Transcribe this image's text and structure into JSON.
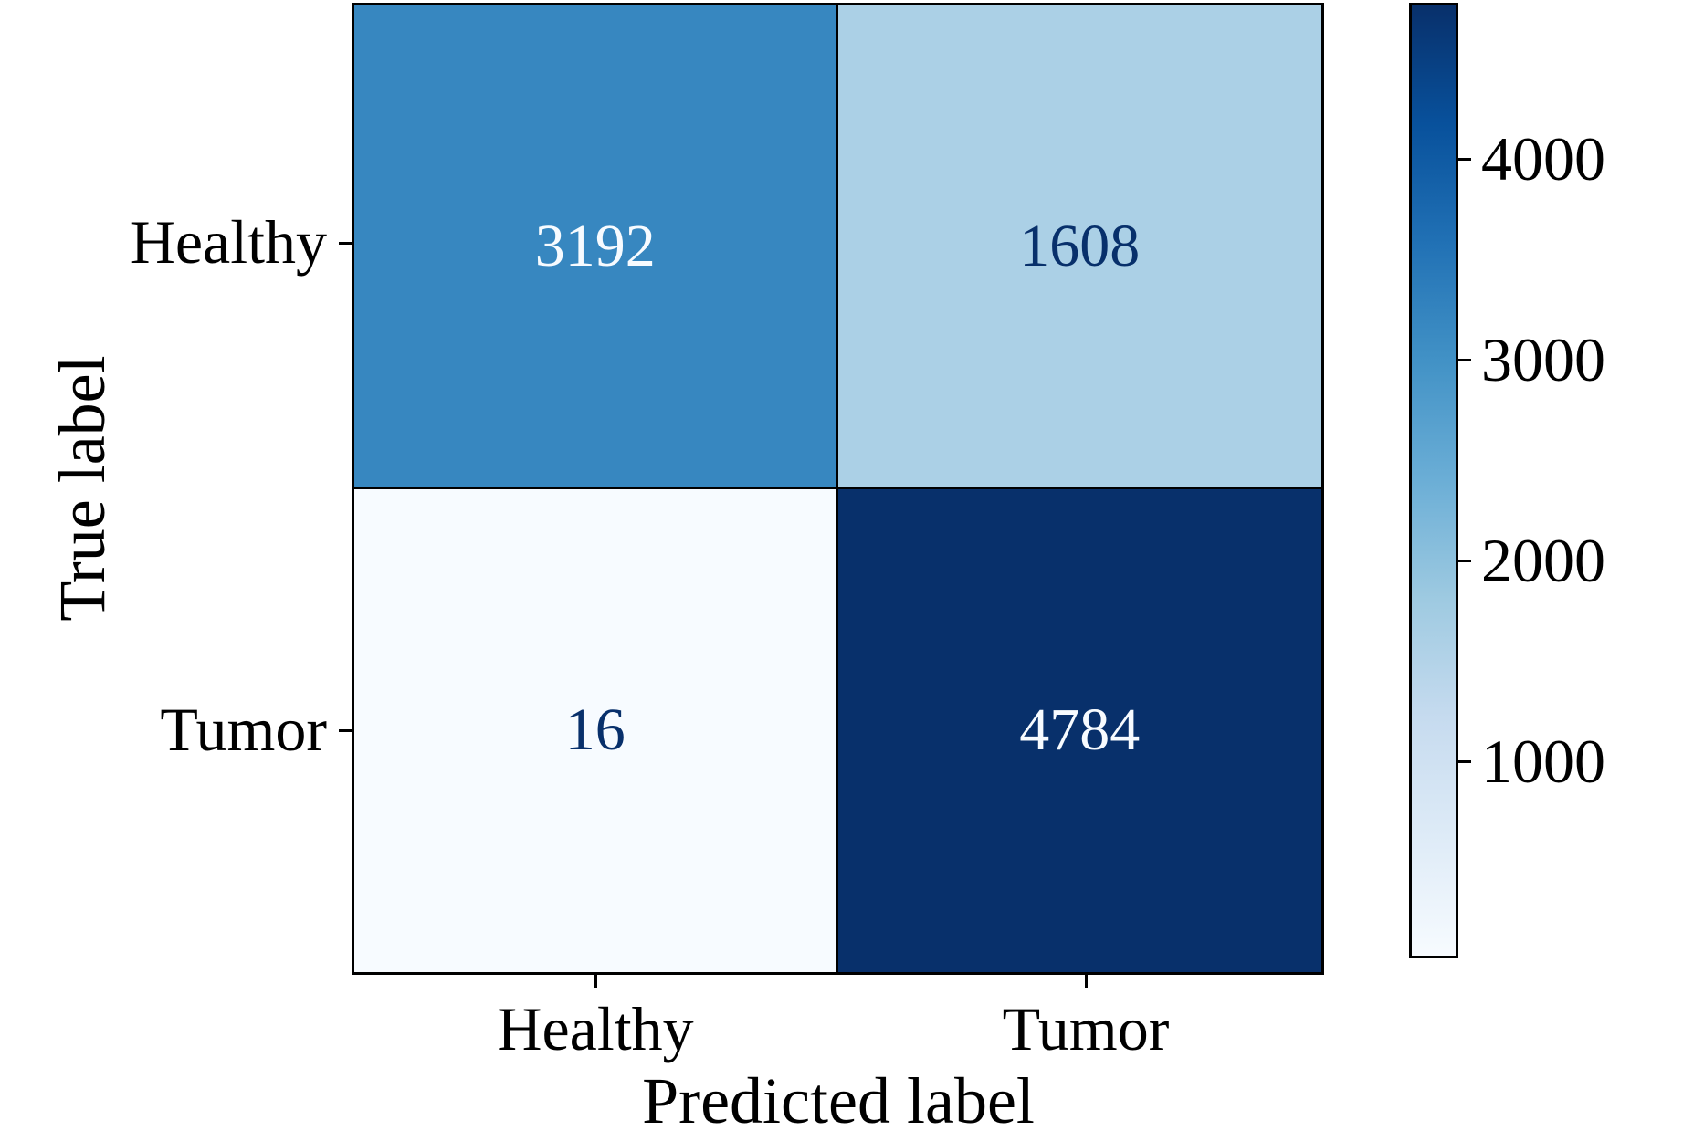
{
  "chart_data": {
    "type": "heatmap",
    "subtype": "confusion-matrix",
    "title": "",
    "xlabel": "Predicted label",
    "ylabel": "True label",
    "x_categories": [
      "Healthy",
      "Tumor"
    ],
    "y_categories": [
      "Healthy",
      "Tumor"
    ],
    "matrix": [
      [
        3192,
        1608
      ],
      [
        16,
        4784
      ]
    ],
    "vmin": 16,
    "vmax": 4784,
    "colormap": "Blues",
    "colorbar_ticks": [
      4000,
      3000,
      2000,
      1000
    ],
    "colorbar_position": "right",
    "grid": false
  },
  "cell_styles": {
    "r0c0": {
      "bg": "#3787c0",
      "fg": "#f7fbff"
    },
    "r0c1": {
      "bg": "#abd0e6",
      "fg": "#08306b"
    },
    "r1c0": {
      "bg": "#f7fbff",
      "fg": "#08306b"
    },
    "r1c1": {
      "bg": "#08306b",
      "fg": "#f7fbff"
    }
  },
  "colorbar": {
    "gradient_stops": [
      "#08306b 0%",
      "#08519c 12.5%",
      "#2171b5 25%",
      "#4292c6 37.5%",
      "#6baed6 50%",
      "#9ecae1 62.5%",
      "#c6dbef 75%",
      "#deebf7 87.5%",
      "#f7fbff 100%"
    ]
  },
  "colors": {
    "axis": "#000000",
    "background": "#ffffff"
  }
}
